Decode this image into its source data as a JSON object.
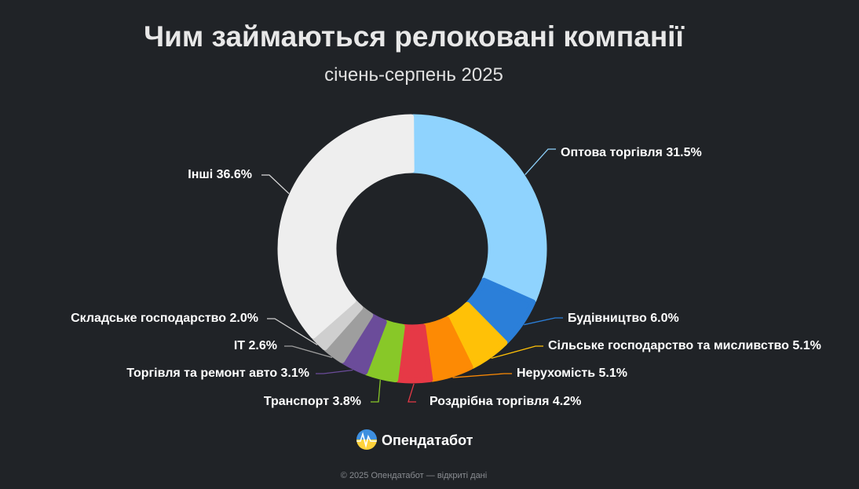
{
  "chart_data": {
    "type": "pie",
    "variant": "donut",
    "title": "Чим займаються релоковані компанії",
    "subtitle": "січень-серпень 2025",
    "slices": [
      {
        "label": "Оптова торгівля 31.5%",
        "name": "Оптова торгівля",
        "value": 31.5,
        "color": "#8fd3fe"
      },
      {
        "label": "Будівництво 6.0%",
        "name": "Будівництво",
        "value": 6.0,
        "color": "#2b7fd9"
      },
      {
        "label": "Сільське господарство та мисливство 5.1%",
        "name": "Сільське господарство та мисливство",
        "value": 5.1,
        "color": "#ffc107"
      },
      {
        "label": "Нерухомість 5.1%",
        "name": "Нерухомість",
        "value": 5.1,
        "color": "#fd8a04"
      },
      {
        "label": "Роздрібна торгівля 4.2%",
        "name": "Роздрібна торгівля",
        "value": 4.2,
        "color": "#e63946"
      },
      {
        "label": "Транспорт 3.8%",
        "name": "Транспорт",
        "value": 3.8,
        "color": "#88c828"
      },
      {
        "label": "Торгівля та ремонт авто 3.1%",
        "name": "Торгівля та ремонт авто",
        "value": 3.1,
        "color": "#6b4c9a"
      },
      {
        "label": "IT 2.6%",
        "name": "IT",
        "value": 2.6,
        "color": "#9e9e9e"
      },
      {
        "label": "Складське господарство 2.0%",
        "name": "Складське господарство",
        "value": 2.0,
        "color": "#cfcfcf"
      },
      {
        "label": "Інші 36.6%",
        "name": "Інші",
        "value": 36.6,
        "color": "#eeeeee"
      }
    ],
    "legend": "none"
  },
  "branding": {
    "name": "Опендатабот",
    "logo_icon": "opendatabot-logo-icon",
    "footer": "© 2025 Опендатабот — відкриті дані"
  },
  "colors": {
    "background": "#202327",
    "title": "#e8e8e8"
  }
}
